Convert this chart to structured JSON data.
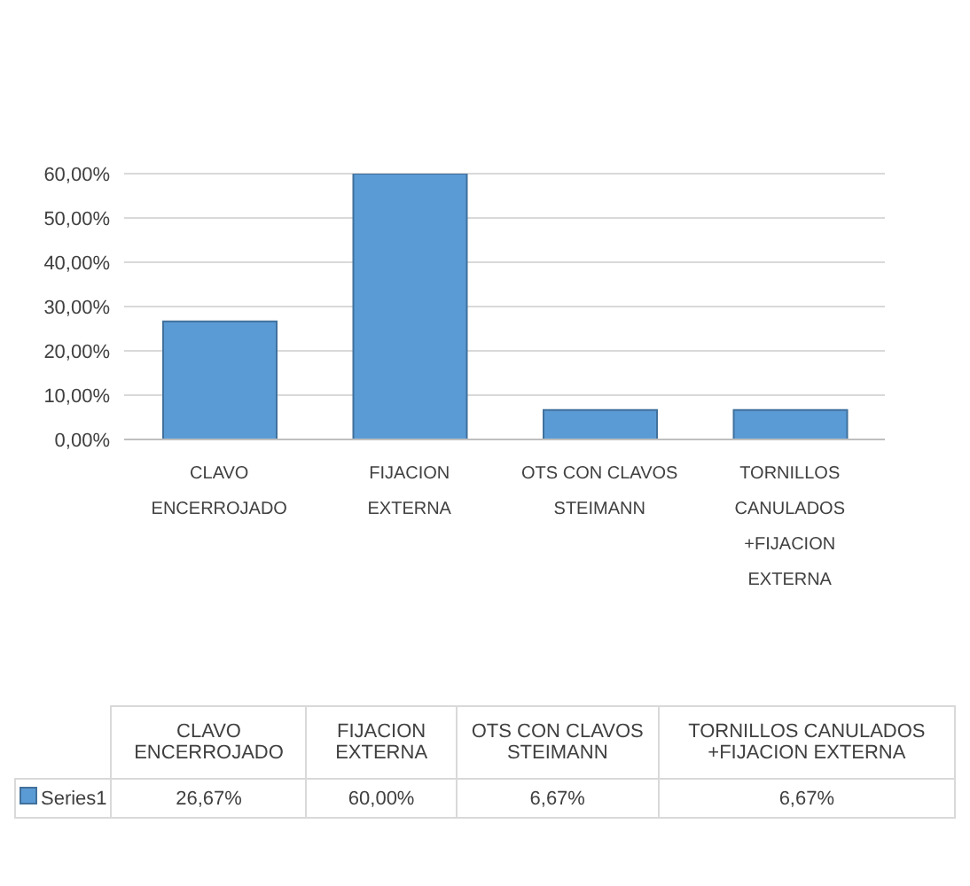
{
  "chart_data": {
    "type": "bar",
    "categories": [
      "CLAVO ENCERROJADO",
      "FIJACION EXTERNA",
      "OTS CON CLAVOS STEIMANN",
      "TORNILLOS CANULADOS +FIJACION EXTERNA"
    ],
    "series": [
      {
        "name": "Series1",
        "color": "#5b9bd5",
        "values": [
          26.67,
          60.0,
          6.67,
          6.67
        ],
        "value_labels": [
          "26,67%",
          "60,00%",
          "6,67%",
          "6,67%"
        ]
      }
    ],
    "ylim": [
      0,
      60
    ],
    "yticks": [
      {
        "value": 0,
        "label": "0,00%"
      },
      {
        "value": 10,
        "label": "10,00%"
      },
      {
        "value": 20,
        "label": "20,00%"
      },
      {
        "value": 30,
        "label": "30,00%"
      },
      {
        "value": 40,
        "label": "40,00%"
      },
      {
        "value": 50,
        "label": "50,00%"
      },
      {
        "value": 60,
        "label": "60,00%"
      }
    ],
    "grid": "y",
    "legend": "bottom"
  }
}
